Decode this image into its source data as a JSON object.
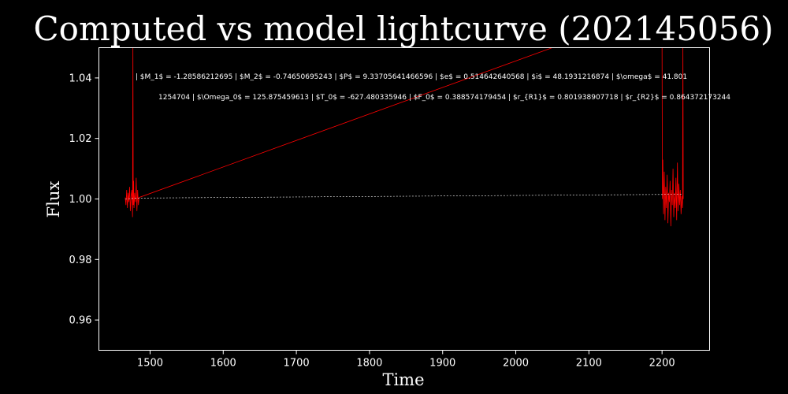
{
  "chart_data": {
    "type": "line",
    "title": "Computed vs model lightcurve (202145056)",
    "xlabel": "Time",
    "ylabel": "Flux",
    "xlim": [
      1430,
      2265
    ],
    "ylim": [
      0.95,
      1.05
    ],
    "xticks": [
      1500,
      1600,
      1700,
      1800,
      1900,
      2000,
      2100,
      2200
    ],
    "yticks": [
      0.96,
      0.98,
      1.0,
      1.02,
      1.04
    ],
    "ytick_labels": [
      "0.96",
      "0.98",
      "1.00",
      "1.02",
      "1.04"
    ],
    "grid": false,
    "background": "#000000",
    "series": [
      {
        "color": "#ff0000",
        "style": "solid",
        "x": [
          1466,
          1467,
          1468,
          1469,
          1470,
          1471,
          1472,
          1473,
          1474,
          1475,
          1476,
          1476.5,
          1477,
          1477.5,
          1478,
          1479,
          1480,
          1481,
          1482,
          1483,
          1484,
          1485,
          2050,
          2200,
          2200.5,
          2201,
          2202,
          2203,
          2204,
          2205,
          2206,
          2207,
          2208,
          2209,
          2210,
          2211,
          2212,
          2213,
          2214,
          2215,
          2216,
          2217,
          2218,
          2219,
          2220,
          2221,
          2222,
          2223,
          2224,
          2225,
          2226,
          2227,
          2228,
          2228.5,
          2229
        ],
        "y": [
          1.0005,
          0.998,
          1.003,
          0.997,
          1.002,
          0.999,
          1.004,
          0.996,
          1.001,
          1.003,
          0.994,
          1.05,
          0.998,
          1.006,
          0.997,
          1.002,
          0.999,
          1.007,
          0.996,
          1.003,
          0.998,
          1.0005,
          1.05,
          1.05,
          1.0,
          1.013,
          0.995,
          1.009,
          0.993,
          1.004,
          0.997,
          1.008,
          0.992,
          1.002,
          0.999,
          1.006,
          0.991,
          1.003,
          0.998,
          1.01,
          0.994,
          1.002,
          0.997,
          1.007,
          0.993,
          1.012,
          0.996,
          1.005,
          0.998,
          1.003,
          0.995,
          1.001,
          0.997,
          1.05,
          1.0
        ]
      },
      {
        "color": "#ffffff",
        "style": "dashed",
        "x": [
          1466,
          1485,
          2205,
          2228
        ],
        "y": [
          1.0,
          1.0003,
          1.0015,
          1.0015
        ]
      }
    ],
    "annotations": [
      "| $M_1$ = -1.28586212695 | $M_2$ = -0.74650695243 | $P$ = 9.33705641466596 | $e$ = 0.514642640568 | $i$ = 48.1931216874 | $\\omega$ = 41.801",
      "1254704 | $\\Omega_0$ = 125.875459613 | $T_0$ = -627.480335946 | $F_0$ = 0.388574179454 | $r_{R1}$ = 0.801938907718 | $r_{R2}$ = 0.864372173244"
    ]
  }
}
